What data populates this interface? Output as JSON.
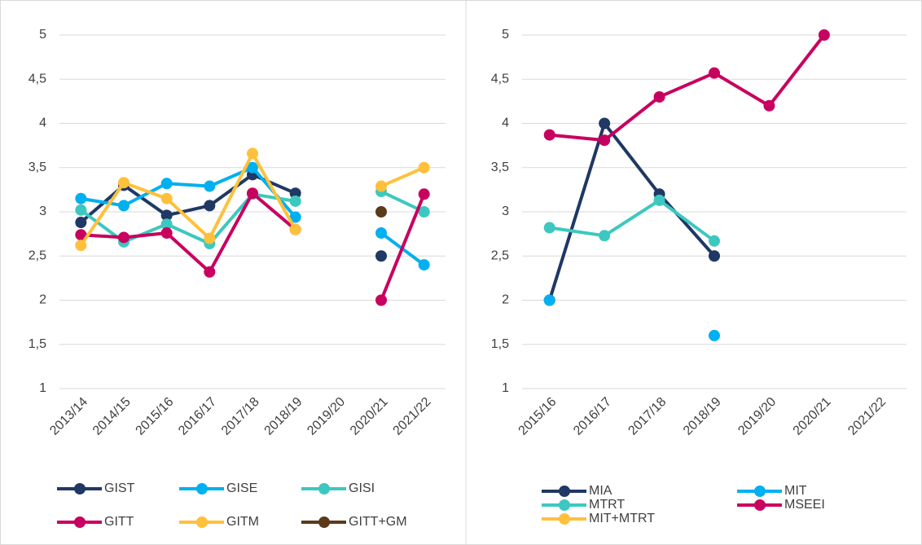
{
  "chart_data": [
    {
      "type": "line",
      "categories": [
        "2013/14",
        "2014/15",
        "2015/16",
        "2016/17",
        "2017/18",
        "2018/19",
        "2019/20",
        "2020/21",
        "2021/22"
      ],
      "series": [
        {
          "name": "GIST",
          "color": "#1f3864",
          "values": [
            2.88,
            3.3,
            2.96,
            3.07,
            3.42,
            3.21,
            null,
            2.5,
            null
          ]
        },
        {
          "name": "GISE",
          "color": "#00b0f0",
          "values": [
            3.15,
            3.07,
            3.32,
            3.29,
            3.5,
            2.94,
            null,
            2.76,
            2.4
          ]
        },
        {
          "name": "GISI",
          "color": "#3cc8c0",
          "values": [
            3.02,
            2.66,
            2.86,
            2.64,
            3.2,
            3.12,
            null,
            3.23,
            3.0
          ]
        },
        {
          "name": "GITT",
          "color": "#c8005f",
          "values": [
            2.74,
            2.71,
            2.76,
            2.32,
            3.21,
            2.8,
            null,
            2.0,
            3.2
          ]
        },
        {
          "name": "GITM",
          "color": "#ffc03c",
          "values": [
            2.62,
            3.33,
            3.15,
            2.7,
            3.66,
            2.8,
            null,
            3.29,
            3.5
          ]
        },
        {
          "name": "GITT+GM",
          "color": "#5b3a1a",
          "values": [
            null,
            null,
            null,
            null,
            null,
            null,
            null,
            3.0,
            null
          ]
        }
      ],
      "ylim": [
        1,
        5
      ],
      "yticks": [
        1,
        {
          "value": 1.5,
          "label": "1,5"
        },
        2,
        {
          "value": 2.5,
          "label": "2,5"
        },
        3,
        {
          "value": 3.5,
          "label": "3,5"
        },
        4,
        {
          "value": 4.5,
          "label": "4,5"
        },
        5
      ],
      "grid": true,
      "legend": "bottom"
    },
    {
      "type": "line",
      "categories": [
        "2015/16",
        "2016/17",
        "2017/18",
        "2018/19",
        "2019/20",
        "2020/21",
        "2021/22"
      ],
      "series": [
        {
          "name": "MIA",
          "color": "#1f3864",
          "values": [
            2.0,
            4.0,
            3.2,
            2.5,
            null,
            null,
            null
          ]
        },
        {
          "name": "MIT",
          "color": "#00b0f0",
          "values": [
            2.0,
            null,
            null,
            1.6,
            null,
            null,
            null
          ]
        },
        {
          "name": "MTRT",
          "color": "#3cc8c0",
          "values": [
            2.82,
            2.73,
            3.13,
            2.67,
            null,
            null,
            null
          ]
        },
        {
          "name": "MSEEI",
          "color": "#c8005f",
          "values": [
            3.87,
            3.81,
            4.3,
            4.57,
            4.2,
            5.0,
            null
          ]
        },
        {
          "name": "MIT+MTRT",
          "color": "#ffc03c",
          "values": [
            null,
            null,
            null,
            null,
            null,
            null,
            null
          ]
        }
      ],
      "ylim": [
        1,
        5
      ],
      "yticks": [
        1,
        {
          "value": 1.5,
          "label": "1,5"
        },
        2,
        {
          "value": 2.5,
          "label": "2,5"
        },
        3,
        {
          "value": 3.5,
          "label": "3,5"
        },
        4,
        {
          "value": 4.5,
          "label": "4,5"
        },
        5
      ],
      "grid": true,
      "legend": "bottom"
    }
  ]
}
